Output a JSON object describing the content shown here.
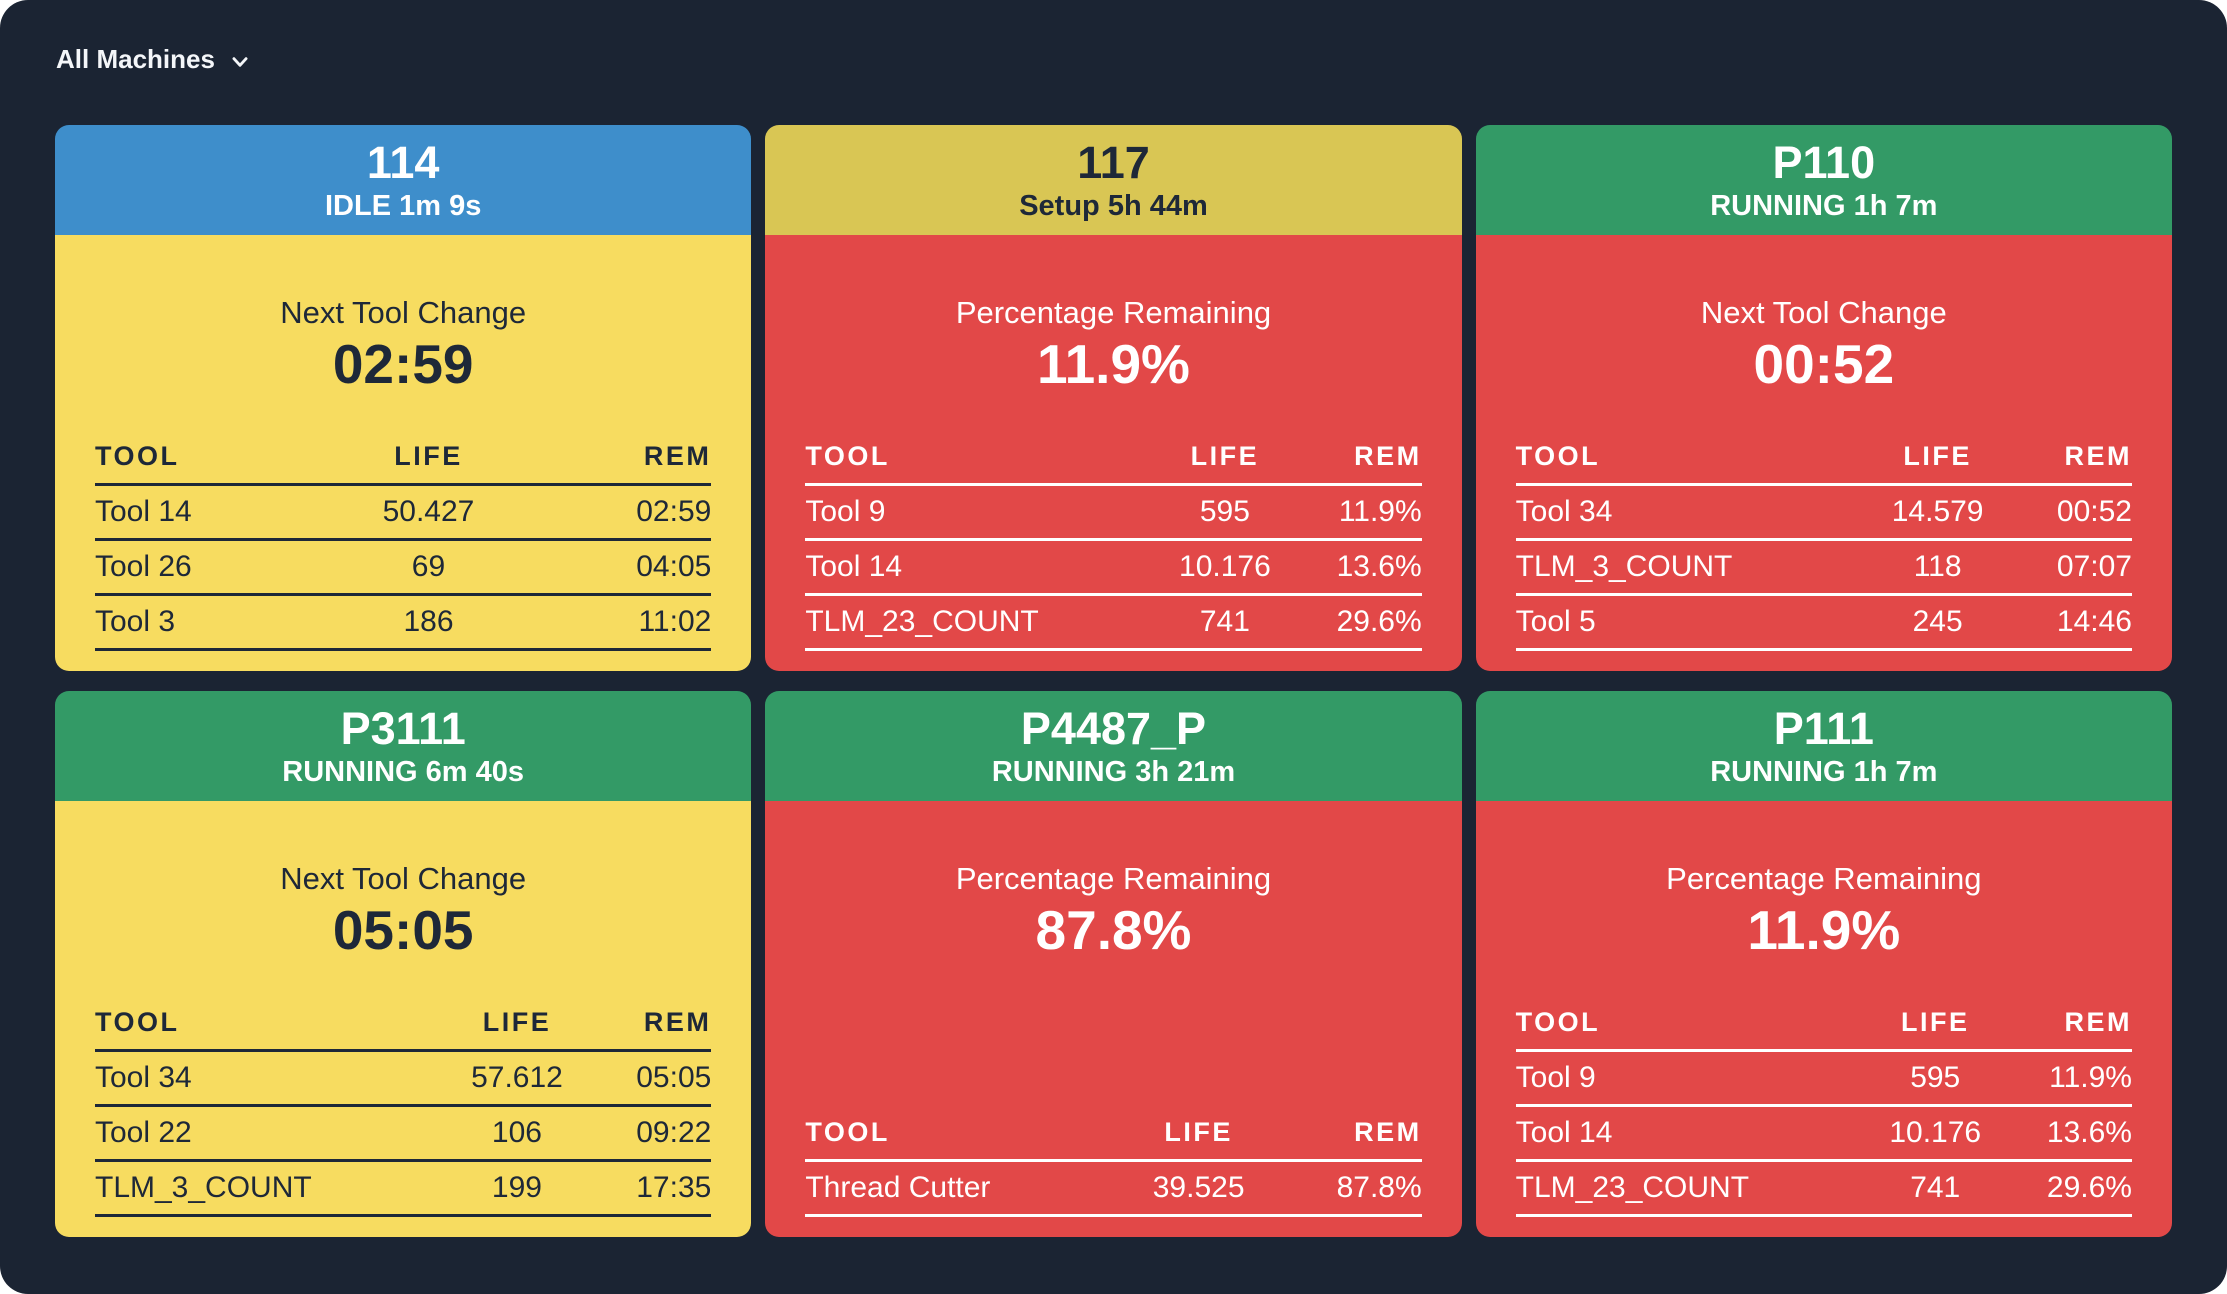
{
  "filter": {
    "label": "All Machines"
  },
  "colors": {
    "background": "#1b2433",
    "idle_blue": "#3e8ecb",
    "setup_yellow": "#d9c654",
    "running_green": "#339a66",
    "warning_yellow_body": "#f7dc60",
    "critical_red_body": "#e24848",
    "dark_text": "#1e2838",
    "light_text": "#ffffff"
  },
  "machines": [
    {
      "name": "114",
      "status": "IDLE 1m 9s",
      "colors": {
        "header": "#3e8ecb",
        "header_text": "#ffffff",
        "body": "#f7dc60",
        "body_text": "#1e2838"
      },
      "metric": {
        "label": "Next Tool Change",
        "value": "02:59"
      },
      "table": {
        "headers": [
          "TOOL",
          "LIFE",
          "REM"
        ],
        "rows": [
          [
            "Tool 14",
            "50.427",
            "02:59"
          ],
          [
            "Tool 26",
            "69",
            "04:05"
          ],
          [
            "Tool 3",
            "186",
            "11:02"
          ]
        ]
      }
    },
    {
      "name": "117",
      "status": "Setup 5h 44m",
      "colors": {
        "header": "#d9c654",
        "header_text": "#1e2838",
        "body": "#e24848",
        "body_text": "#ffffff"
      },
      "metric": {
        "label": "Percentage Remaining",
        "value": "11.9%"
      },
      "table": {
        "headers": [
          "TOOL",
          "LIFE",
          "REM"
        ],
        "rows": [
          [
            "Tool 9",
            "595",
            "11.9%"
          ],
          [
            "Tool 14",
            "10.176",
            "13.6%"
          ],
          [
            "TLM_23_COUNT",
            "741",
            "29.6%"
          ]
        ]
      }
    },
    {
      "name": "P110",
      "status": "RUNNING 1h 7m",
      "colors": {
        "header": "#339a66",
        "header_text": "#ffffff",
        "body": "#e24848",
        "body_text": "#ffffff"
      },
      "metric": {
        "label": "Next Tool Change",
        "value": "00:52"
      },
      "table": {
        "headers": [
          "TOOL",
          "LIFE",
          "REM"
        ],
        "rows": [
          [
            "Tool 34",
            "14.579",
            "00:52"
          ],
          [
            "TLM_3_COUNT",
            "118",
            "07:07"
          ],
          [
            "Tool 5",
            "245",
            "14:46"
          ]
        ]
      }
    },
    {
      "name": "P3111",
      "status": "RUNNING 6m 40s",
      "colors": {
        "header": "#339a66",
        "header_text": "#ffffff",
        "body": "#f7dc60",
        "body_text": "#1e2838"
      },
      "metric": {
        "label": "Next Tool Change",
        "value": "05:05"
      },
      "table": {
        "headers": [
          "TOOL",
          "LIFE",
          "REM"
        ],
        "rows": [
          [
            "Tool 34",
            "57.612",
            "05:05"
          ],
          [
            "Tool 22",
            "106",
            "09:22"
          ],
          [
            "TLM_3_COUNT",
            "199",
            "17:35"
          ]
        ]
      }
    },
    {
      "name": "P4487_P",
      "status": "RUNNING 3h 21m",
      "colors": {
        "header": "#339a66",
        "header_text": "#ffffff",
        "body": "#e24848",
        "body_text": "#ffffff"
      },
      "metric": {
        "label": "Percentage Remaining",
        "value": "87.8%"
      },
      "table": {
        "headers": [
          "TOOL",
          "LIFE",
          "REM"
        ],
        "rows": [
          [
            "Thread Cutter",
            "39.525",
            "87.8%"
          ]
        ]
      }
    },
    {
      "name": "P111",
      "status": "RUNNING 1h 7m",
      "colors": {
        "header": "#339a66",
        "header_text": "#ffffff",
        "body": "#e24848",
        "body_text": "#ffffff"
      },
      "metric": {
        "label": "Percentage Remaining",
        "value": "11.9%"
      },
      "table": {
        "headers": [
          "TOOL",
          "LIFE",
          "REM"
        ],
        "rows": [
          [
            "Tool 9",
            "595",
            "11.9%"
          ],
          [
            "Tool 14",
            "10.176",
            "13.6%"
          ],
          [
            "TLM_23_COUNT",
            "741",
            "29.6%"
          ]
        ]
      }
    }
  ]
}
